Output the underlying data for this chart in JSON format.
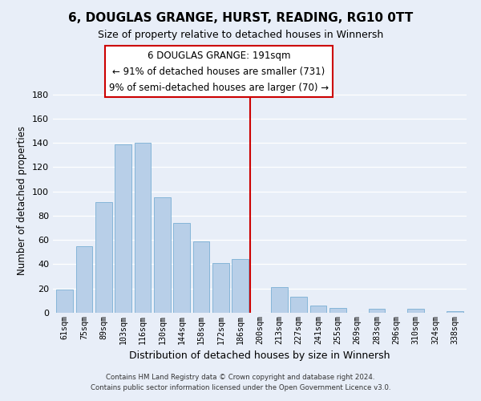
{
  "title": "6, DOUGLAS GRANGE, HURST, READING, RG10 0TT",
  "subtitle": "Size of property relative to detached houses in Winnersh",
  "xlabel": "Distribution of detached houses by size in Winnersh",
  "ylabel": "Number of detached properties",
  "bar_labels": [
    "61sqm",
    "75sqm",
    "89sqm",
    "103sqm",
    "116sqm",
    "130sqm",
    "144sqm",
    "158sqm",
    "172sqm",
    "186sqm",
    "200sqm",
    "213sqm",
    "227sqm",
    "241sqm",
    "255sqm",
    "269sqm",
    "283sqm",
    "296sqm",
    "310sqm",
    "324sqm",
    "338sqm"
  ],
  "bar_values": [
    19,
    55,
    91,
    139,
    140,
    95,
    74,
    59,
    41,
    44,
    0,
    21,
    13,
    6,
    4,
    0,
    3,
    0,
    3,
    0,
    1
  ],
  "bar_color": "#b8cfe8",
  "bar_edge_color": "#7aafd4",
  "vline_x": 9.5,
  "vline_color": "#cc0000",
  "ylim": [
    0,
    185
  ],
  "yticks": [
    0,
    20,
    40,
    60,
    80,
    100,
    120,
    140,
    160,
    180
  ],
  "annotation_title": "6 DOUGLAS GRANGE: 191sqm",
  "annotation_line1": "← 91% of detached houses are smaller (731)",
  "annotation_line2": "9% of semi-detached houses are larger (70) →",
  "footer_line1": "Contains HM Land Registry data © Crown copyright and database right 2024.",
  "footer_line2": "Contains public sector information licensed under the Open Government Licence v3.0.",
  "background_color": "#e8eef8",
  "plot_bg_color": "#e8eef8",
  "grid_color": "#ffffff",
  "title_fontsize": 11,
  "subtitle_fontsize": 9
}
